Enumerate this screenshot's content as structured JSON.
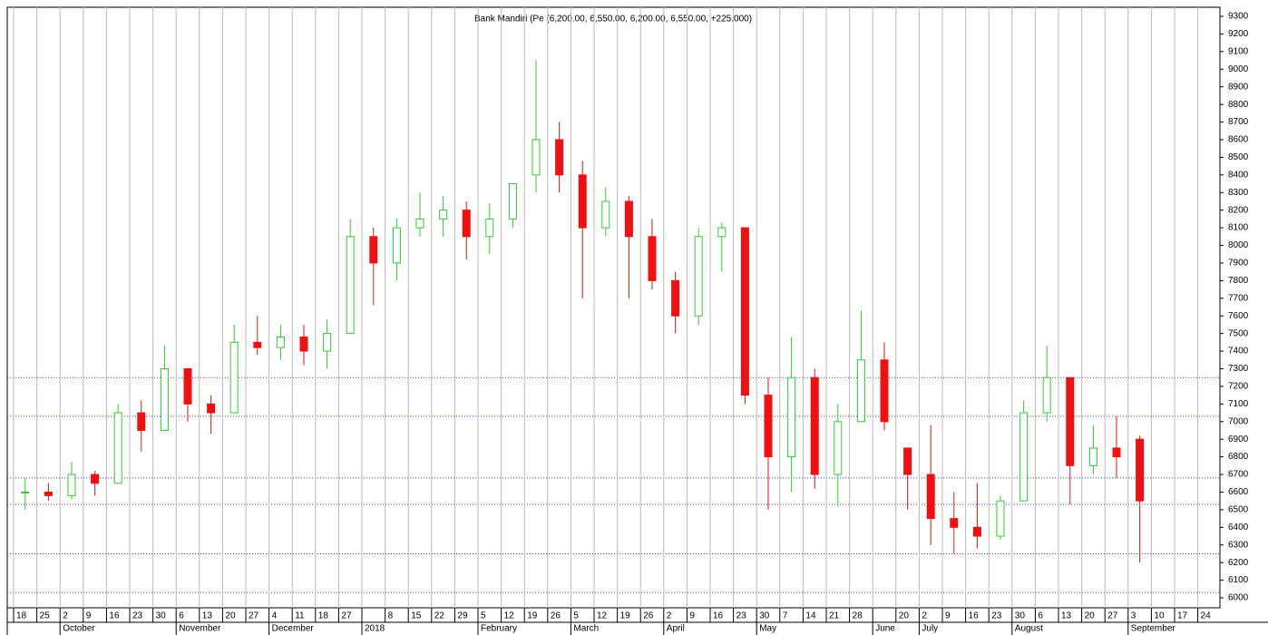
{
  "chart_data": {
    "type": "candlestick",
    "title": "Bank Mandiri (Pe (6,200.00, 6,550.00, 6,200.00, 6,550.00, +225.000)",
    "categories": [
      "18",
      "25",
      "2",
      "9",
      "16",
      "23",
      "30",
      "6",
      "13",
      "20",
      "27",
      "4",
      "11",
      "18",
      "27",
      null,
      "8",
      "15",
      "22",
      "29",
      "5",
      "12",
      "19",
      "26",
      "5",
      "12",
      "19",
      "26",
      "2",
      "9",
      "16",
      "23",
      "30",
      "7",
      "14",
      "21",
      "28",
      null,
      "20",
      "2",
      "9",
      "16",
      "23",
      "30",
      "6",
      "13",
      "20",
      "27",
      "3",
      "10",
      "17",
      "24"
    ],
    "months": [
      null,
      null,
      "October",
      null,
      null,
      null,
      null,
      "November",
      null,
      null,
      null,
      "December",
      null,
      null,
      null,
      "2018",
      null,
      null,
      null,
      null,
      "February",
      null,
      null,
      null,
      "March",
      null,
      null,
      null,
      "April",
      null,
      null,
      null,
      "May",
      null,
      null,
      null,
      null,
      "June",
      null,
      "July",
      null,
      null,
      null,
      "August",
      null,
      null,
      null,
      null,
      "September",
      null,
      null,
      null
    ],
    "open": [
      6600,
      6600,
      6580,
      6700,
      6650,
      7050,
      6950,
      7300,
      7100,
      7050,
      7450,
      7420,
      7480,
      7400,
      7500,
      8050,
      7900,
      8100,
      8150,
      8200,
      8050,
      8150,
      8400,
      8600,
      8400,
      8100,
      8250,
      8050,
      7800,
      7600,
      8050,
      8100,
      7150,
      6800,
      7250,
      6700,
      7000,
      7350,
      6850,
      6700,
      6450,
      6400,
      6350,
      6550,
      7050,
      7250,
      6750,
      6850,
      6900,
      null,
      null,
      null
    ],
    "high": [
      6680,
      6650,
      6770,
      6720,
      7100,
      7120,
      7430,
      7300,
      7150,
      7550,
      7600,
      7550,
      7550,
      7580,
      8150,
      8100,
      8150,
      8300,
      8280,
      8250,
      8240,
      8350,
      9050,
      8700,
      8480,
      8330,
      8280,
      8150,
      7850,
      8100,
      8130,
      8100,
      7250,
      7480,
      7300,
      7100,
      7630,
      7450,
      6850,
      6980,
      6600,
      6650,
      6580,
      7120,
      7430,
      7250,
      6980,
      7030,
      6920,
      null,
      null,
      null
    ],
    "low": [
      6500,
      6550,
      6560,
      6580,
      6650,
      6830,
      6950,
      7000,
      6930,
      7050,
      7380,
      7350,
      7320,
      7300,
      7500,
      7660,
      7800,
      8050,
      8050,
      7920,
      7950,
      8100,
      8300,
      8300,
      7700,
      8050,
      7700,
      7750,
      7500,
      7550,
      7850,
      7100,
      6500,
      6600,
      6620,
      6520,
      7000,
      6950,
      6500,
      6300,
      6250,
      6280,
      6330,
      6550,
      7000,
      6530,
      6700,
      6680,
      6200,
      null,
      null,
      null
    ],
    "close": [
      6600,
      6580,
      6700,
      6650,
      7050,
      6950,
      7300,
      7100,
      7050,
      7450,
      7420,
      7480,
      7400,
      7500,
      8050,
      7900,
      8100,
      8150,
      8200,
      8050,
      8150,
      8350,
      8600,
      8400,
      8100,
      8250,
      8050,
      7800,
      7600,
      8050,
      8100,
      7150,
      6800,
      7250,
      6700,
      7000,
      7350,
      7000,
      6700,
      6450,
      6400,
      6350,
      6550,
      7050,
      7250,
      6750,
      6850,
      6800,
      6550,
      null,
      null,
      null
    ],
    "up_color": "#33cc33",
    "down_color": "#ee1111",
    "ylim": [
      6000,
      9300
    ],
    "yticks": [
      6000,
      6100,
      6200,
      6300,
      6400,
      6500,
      6600,
      6700,
      6800,
      6900,
      7000,
      7100,
      7200,
      7300,
      7400,
      7500,
      7600,
      7700,
      7800,
      7900,
      8000,
      8100,
      8200,
      8300,
      8400,
      8500,
      8600,
      8700,
      8800,
      8900,
      9000,
      9100,
      9200,
      9300
    ],
    "hlines": [
      7250,
      7030,
      6680,
      6530,
      6250,
      6030
    ],
    "grid": true
  }
}
